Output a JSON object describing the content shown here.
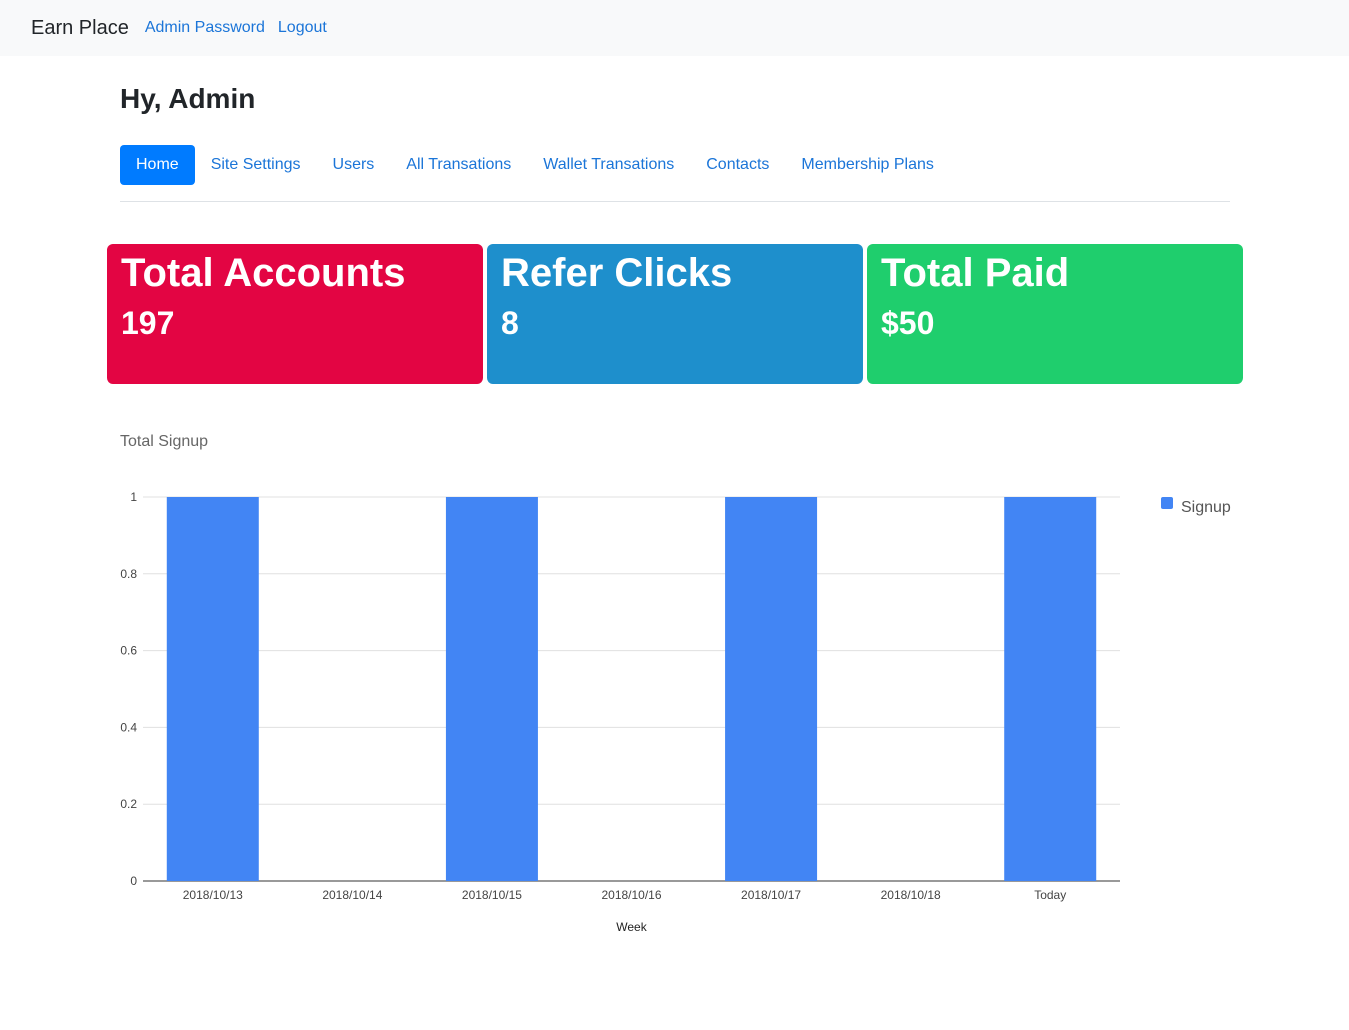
{
  "navbar": {
    "brand": "Earn Place",
    "links": [
      "Admin Password",
      "Logout"
    ]
  },
  "greeting": "Hy, Admin",
  "tabs": [
    {
      "label": "Home",
      "active": true
    },
    {
      "label": "Site Settings",
      "active": false
    },
    {
      "label": "Users",
      "active": false
    },
    {
      "label": "All Transations",
      "active": false
    },
    {
      "label": "Wallet Transations",
      "active": false
    },
    {
      "label": "Contacts",
      "active": false
    },
    {
      "label": "Membership Plans",
      "active": false
    }
  ],
  "cards": [
    {
      "title": "Total Accounts",
      "value": "197",
      "color": "#e30543"
    },
    {
      "title": "Refer Clicks",
      "value": "8",
      "color": "#1e8fcc"
    },
    {
      "title": "Total Paid",
      "value": "$50",
      "color": "#1fce6d"
    }
  ],
  "chart_data": {
    "type": "bar",
    "title": "Total Signup",
    "categories": [
      "2018/10/13",
      "2018/10/14",
      "2018/10/15",
      "2018/10/16",
      "2018/10/17",
      "2018/10/18",
      "Today"
    ],
    "series": [
      {
        "name": "Signup",
        "values": [
          1,
          0,
          1,
          0,
          1,
          0,
          1
        ],
        "color": "#4285f4"
      }
    ],
    "xlabel": "Week",
    "ylabel": "",
    "ylim": [
      0,
      1
    ],
    "yticks": [
      "0",
      "0.2",
      "0.4",
      "0.6",
      "0.8",
      "1"
    ],
    "grid": true,
    "legend": "right"
  }
}
